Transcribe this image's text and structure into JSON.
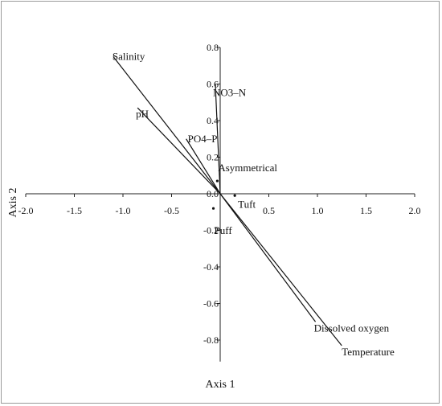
{
  "chart_data": {
    "type": "biplot",
    "xlabel": "Axis 1",
    "ylabel": "Axis 2",
    "xlim": [
      -2.0,
      2.0
    ],
    "ylim": [
      -0.9,
      0.8
    ],
    "x_ticks": [
      {
        "value": -2.0,
        "label": "-2.0"
      },
      {
        "value": -1.5,
        "label": "-1.5"
      },
      {
        "value": -1.0,
        "label": "-1.0"
      },
      {
        "value": -0.5,
        "label": "-0.5"
      },
      {
        "value": 0.5,
        "label": "0.5"
      },
      {
        "value": 1.0,
        "label": "1.0"
      },
      {
        "value": 1.5,
        "label": "1.5"
      },
      {
        "value": 2.0,
        "label": "2.0"
      }
    ],
    "y_ticks": [
      {
        "value": 0.8,
        "label": "0.8"
      },
      {
        "value": 0.6,
        "label": "0.6"
      },
      {
        "value": 0.4,
        "label": "0.4"
      },
      {
        "value": 0.2,
        "label": "0.2"
      },
      {
        "value": 0.0,
        "label": "0.0"
      },
      {
        "value": -0.2,
        "label": "-0.2"
      },
      {
        "value": -0.4,
        "label": "-0.4"
      },
      {
        "value": -0.6,
        "label": "-0.6"
      },
      {
        "value": -0.8,
        "label": "-0.8"
      }
    ],
    "vectors": [
      {
        "name": "Salinity",
        "x": -1.1,
        "y": 0.75
      },
      {
        "name": "pH",
        "x": -0.85,
        "y": 0.47
      },
      {
        "name": "PO4–P",
        "x": -0.35,
        "y": 0.3
      },
      {
        "name": "NO3–N",
        "x": -0.05,
        "y": 0.6
      },
      {
        "name": "Dissolved oxygen",
        "x": 0.98,
        "y": -0.7
      },
      {
        "name": "Temperature",
        "x": 1.25,
        "y": -0.83
      }
    ],
    "points": [
      {
        "name": "Asymmetrical",
        "x": -0.03,
        "y": 0.07
      },
      {
        "name": "Tuft",
        "x": 0.15,
        "y": -0.01
      },
      {
        "name": "Puff",
        "x": -0.07,
        "y": -0.08
      }
    ]
  }
}
